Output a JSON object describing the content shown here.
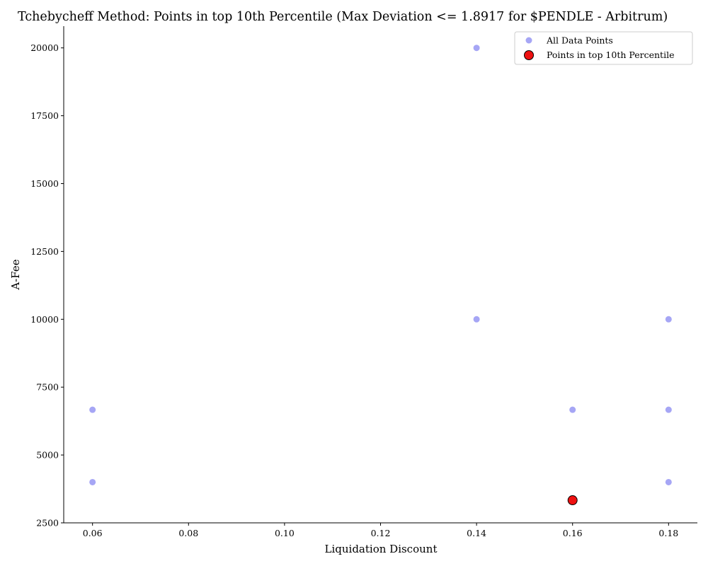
{
  "chart_data": {
    "type": "scatter",
    "title": "Tchebycheff Method: Points in top 10th Percentile (Max Deviation <= 1.8917 for $PENDLE - Arbitrum)",
    "xlabel": "Liquidation Discount",
    "ylabel": "A-Fee",
    "xlim": [
      0.054,
      0.186
    ],
    "ylim": [
      2500,
      20800
    ],
    "x_ticks": [
      0.06,
      0.08,
      0.1,
      0.12,
      0.14,
      0.16,
      0.18
    ],
    "x_tick_labels": [
      "0.06",
      "0.08",
      "0.10",
      "0.12",
      "0.14",
      "0.16",
      "0.18"
    ],
    "y_ticks": [
      2500,
      5000,
      7500,
      10000,
      12500,
      15000,
      17500,
      20000
    ],
    "y_tick_labels": [
      "2500",
      "5000",
      "7500",
      "10000",
      "12500",
      "15000",
      "17500",
      "20000"
    ],
    "grid": false,
    "legend_position": "top-right",
    "series": [
      {
        "name": "All Data Points",
        "color": "#a6a6f5",
        "x": [
          0.06,
          0.06,
          0.14,
          0.14,
          0.16,
          0.18,
          0.18,
          0.18
        ],
        "y": [
          4000,
          6667,
          10000,
          20000,
          6667,
          4000,
          6667,
          10000
        ]
      },
      {
        "name": "Points in top 10th Percentile",
        "color": "#ee1111",
        "x": [
          0.16
        ],
        "y": [
          3333
        ]
      }
    ]
  }
}
